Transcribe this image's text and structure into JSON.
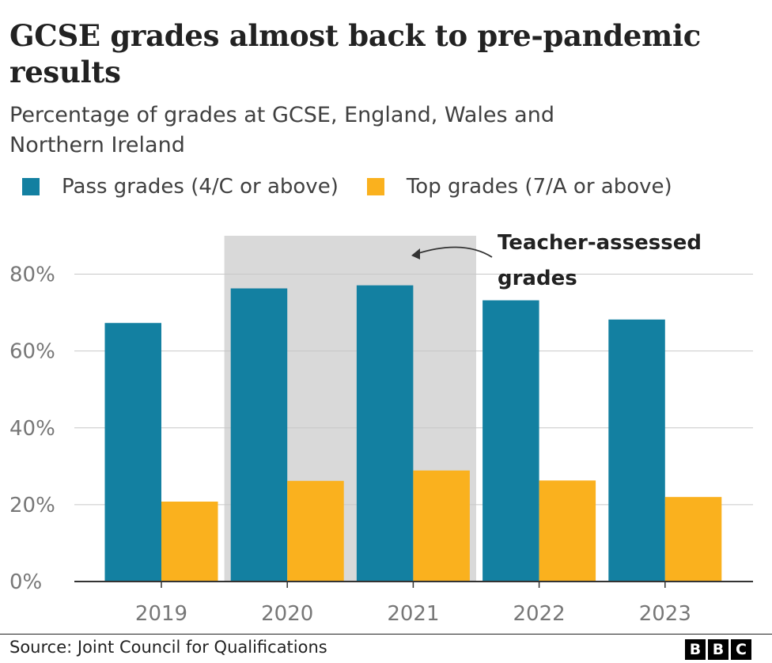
{
  "title": "GCSE grades almost back to pre-pandemic results",
  "subtitle": "Percentage of grades at GCSE, England, Wales and Northern Ireland",
  "legend": [
    {
      "label": "Pass grades (4/C or above)",
      "color": "#1380a1"
    },
    {
      "label": "Top grades (7/A or above)",
      "color": "#fab11e"
    }
  ],
  "source": "Source: Joint Council for Qualifications",
  "logo_text": "BBC",
  "chart_data": {
    "type": "bar",
    "categories": [
      "2019",
      "2020",
      "2021",
      "2022",
      "2023"
    ],
    "series": [
      {
        "name": "Pass grades (4/C or above)",
        "values": [
          67.3,
          76.3,
          77.1,
          73.2,
          68.2
        ],
        "color": "#1380a1"
      },
      {
        "name": "Top grades (7/A or above)",
        "values": [
          20.8,
          26.2,
          28.9,
          26.3,
          22.0
        ],
        "color": "#fab11e"
      }
    ],
    "ylim": [
      0,
      90
    ],
    "yticks": [
      0,
      20,
      40,
      60,
      80
    ],
    "ytick_labels": [
      "0%",
      "20%",
      "40%",
      "60%",
      "80%"
    ],
    "grid": true,
    "shaded_categories": [
      "2020",
      "2021"
    ],
    "shade_color": "#d9d9d9",
    "annotation": {
      "text_lines": [
        "Teacher-assessed",
        "grades"
      ]
    }
  }
}
